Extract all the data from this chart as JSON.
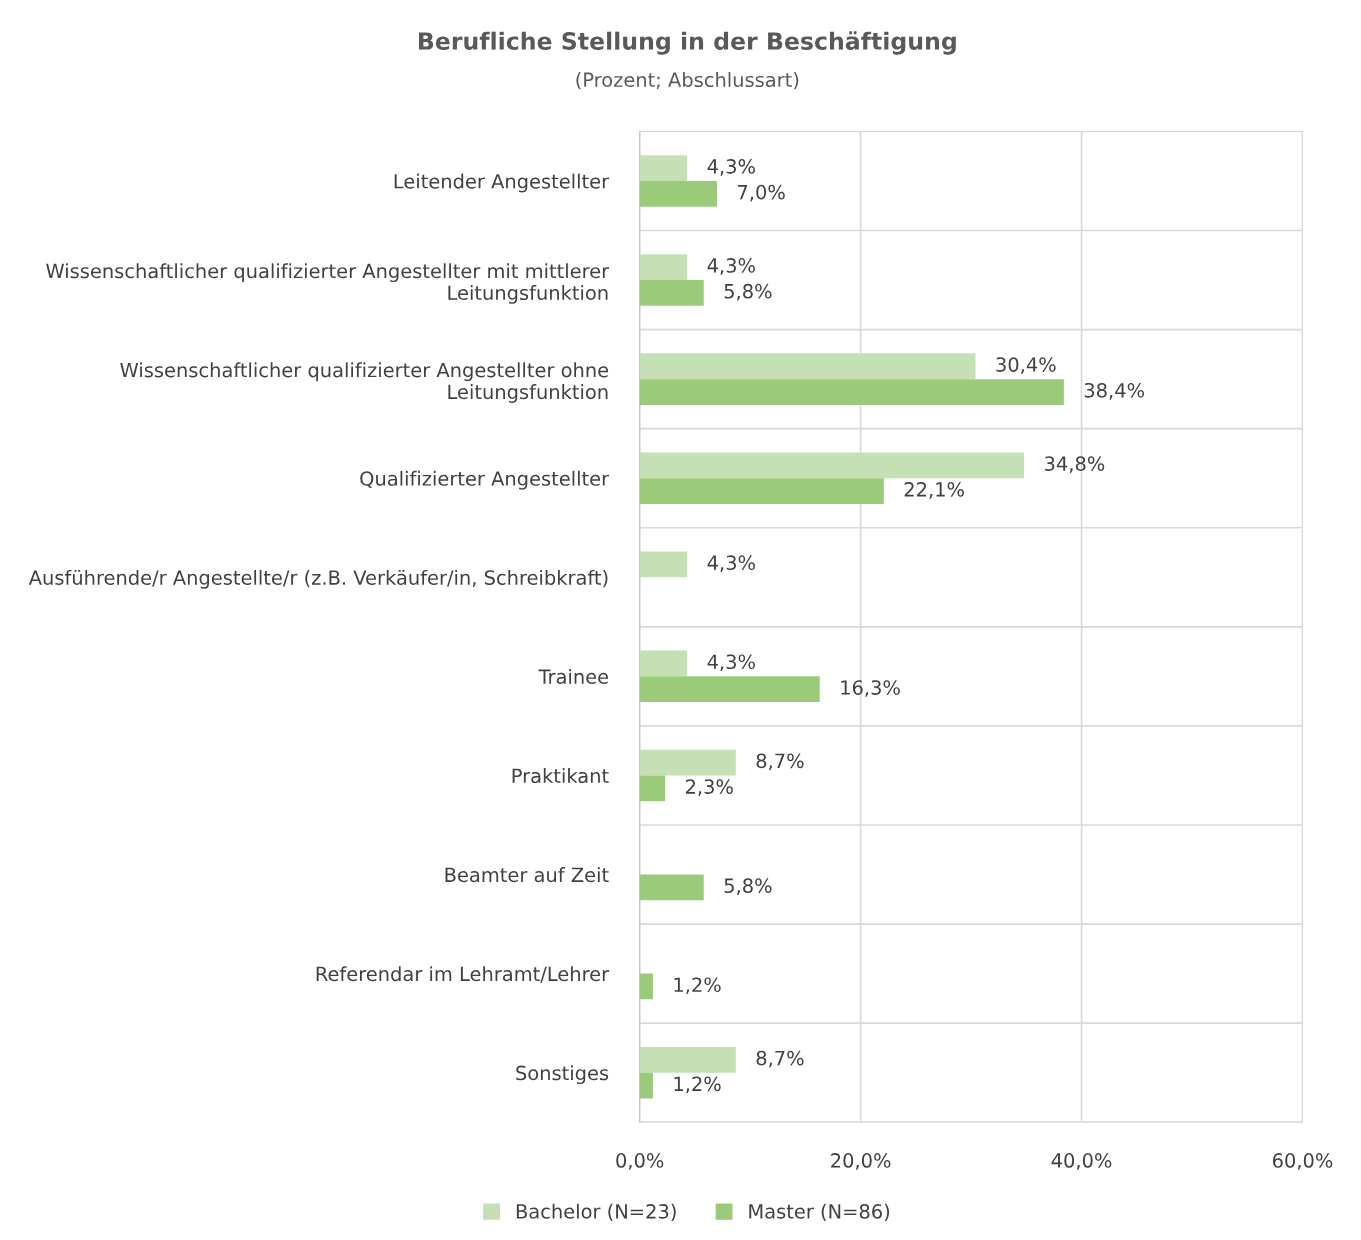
{
  "chart_data": {
    "type": "bar",
    "orientation": "horizontal",
    "title": "Berufliche Stellung in der Beschäftigung",
    "subtitle": "(Prozent; Abschlussart)",
    "categories": [
      "Leitender Angestellter",
      "Wissenschaftlicher qualifizierter Angestellter mit mittlerer\nLeitungsfunktion",
      "Wissenschaftlicher qualifizierter Angestellter ohne\nLeitungsfunktion",
      "Qualifizierter Angestellter",
      "Ausführende/r Angestellte/r (z.B. Verkäufer/in, Schreibkraft)",
      "Trainee",
      "Praktikant",
      "Beamter auf Zeit",
      "Referendar im Lehramt/Lehrer",
      "Sonstiges"
    ],
    "series": [
      {
        "name": "Bachelor (N=23)",
        "color": "#c5e0b4",
        "values": [
          4.3,
          4.3,
          30.4,
          34.8,
          4.3,
          4.3,
          8.7,
          null,
          null,
          8.7
        ],
        "value_labels": [
          "4,3%",
          "4,3%",
          "30,4%",
          "34,8%",
          "4,3%",
          "4,3%",
          "8,7%",
          null,
          null,
          "8,7%"
        ]
      },
      {
        "name": "Master (N=86)",
        "color": "#9bcb7a",
        "values": [
          7.0,
          5.8,
          38.4,
          22.1,
          null,
          16.3,
          2.3,
          5.8,
          1.2,
          1.2
        ],
        "value_labels": [
          "7,0%",
          "5,8%",
          "38,4%",
          "22,1%",
          null,
          "16,3%",
          "2,3%",
          "5,8%",
          "1,2%",
          "1,2%"
        ]
      }
    ],
    "xlim": [
      0,
      60
    ],
    "xticks": [
      {
        "value": 0,
        "label": "0,0%"
      },
      {
        "value": 20,
        "label": "20,0%"
      },
      {
        "value": 40,
        "label": "40,0%"
      },
      {
        "value": 60,
        "label": "60,0%"
      }
    ],
    "grid": true,
    "legend": "bottom"
  }
}
